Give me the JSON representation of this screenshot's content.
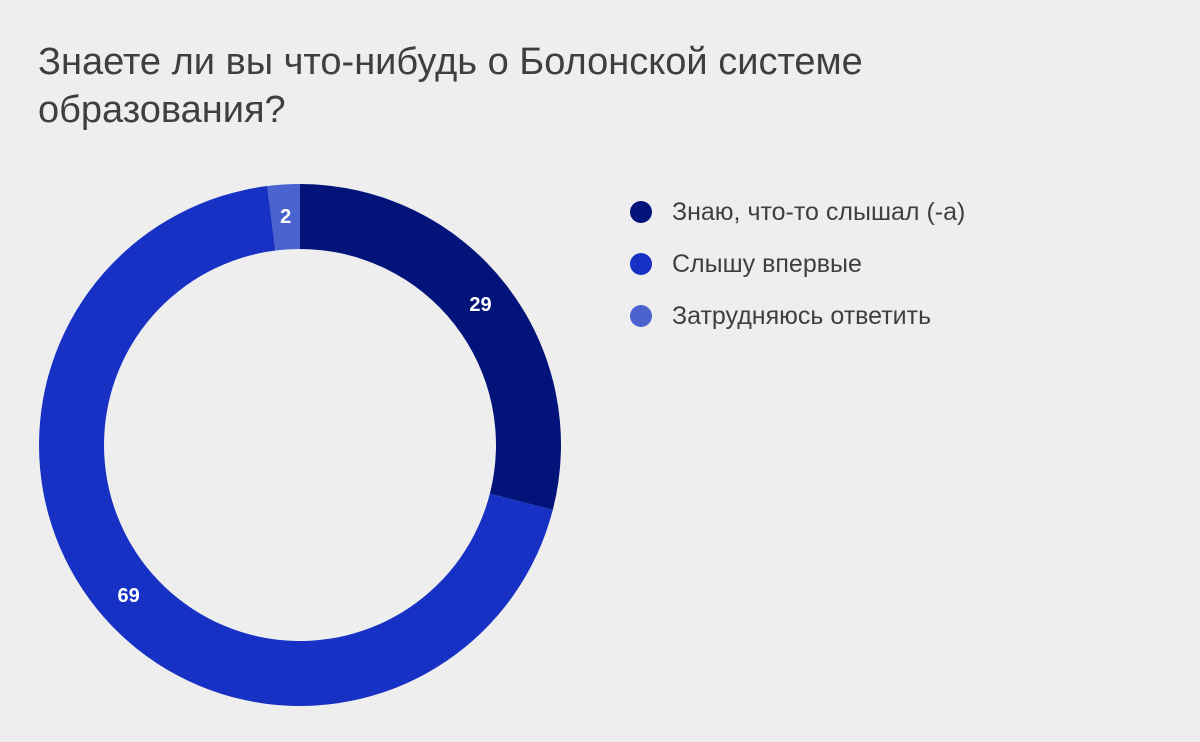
{
  "chart_data": {
    "type": "pie",
    "title": "Знаете ли вы что-нибудь о Болонской системе образования?",
    "donut": true,
    "legend_position": "right",
    "slices": [
      {
        "label": "Знаю, что-то слышал (-а)",
        "value": 29,
        "color": "#02137a"
      },
      {
        "label": "Слышу впервые",
        "value": 69,
        "color": "#1731c4"
      },
      {
        "label": "Затрудняюсь ответить",
        "value": 2,
        "color": "#4a63cf"
      }
    ]
  }
}
